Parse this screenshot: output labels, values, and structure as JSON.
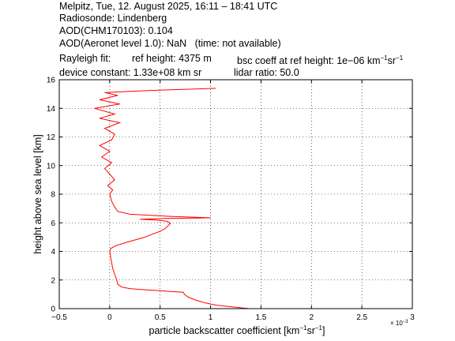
{
  "header": {
    "title": "Melpitz, Tue, 12. August 2025, 16:11 – 18:41 UTC",
    "radiosonde": "Radiosonde: Lindenberg",
    "aod_chm": "AOD(CHM170103): 0.104",
    "aod_aeronet": "AOD(Aeronet level 1.0): NaN   (time: not available)",
    "rayleigh_fit": "Rayleigh fit:",
    "ref_height": "ref height: 4375 m",
    "bsc_coeff_prefix": "bsc coeff at ref height: 1e−06 km",
    "bsc_coeff_exp1": "−1",
    "bsc_coeff_mid": "sr",
    "bsc_coeff_exp2": "−1",
    "device_constant": "device constant: 1.33e+08 km sr",
    "lidar_ratio": "lidar ratio: 50.0"
  },
  "chart_data": {
    "type": "line",
    "xlabel_prefix": "particle backscatter coefficient [km",
    "xlabel_exp1": "−1",
    "xlabel_mid": "sr",
    "xlabel_exp2": "−1",
    "xlabel_suffix": "]",
    "ylabel": "height above sea level [km]",
    "x_multiplier_label": "× 10",
    "x_multiplier_exp": "−3",
    "xlim": [
      -0.5,
      3
    ],
    "ylim": [
      0,
      16
    ],
    "xticks": [
      -0.5,
      0,
      0.5,
      1,
      1.5,
      2,
      2.5,
      3
    ],
    "xtick_labels": [
      "−0.5",
      "0",
      "0.5",
      "1",
      "1.5",
      "2",
      "2.5",
      "3"
    ],
    "yticks": [
      0,
      2,
      4,
      6,
      8,
      10,
      12,
      14,
      16
    ],
    "ytick_labels": [
      "0",
      "2",
      "4",
      "6",
      "8",
      "10",
      "12",
      "14",
      "16"
    ],
    "grid": true,
    "series": [
      {
        "color": "#ff0000",
        "points": [
          [
            1.38,
            0.0
          ],
          [
            1.25,
            0.1
          ],
          [
            1.05,
            0.25
          ],
          [
            0.95,
            0.4
          ],
          [
            0.85,
            0.6
          ],
          [
            0.78,
            0.8
          ],
          [
            0.74,
            1.0
          ],
          [
            0.73,
            1.15
          ],
          [
            0.6,
            1.2
          ],
          [
            0.5,
            1.25
          ],
          [
            0.38,
            1.3
          ],
          [
            0.28,
            1.35
          ],
          [
            0.2,
            1.4
          ],
          [
            0.12,
            1.5
          ],
          [
            0.08,
            1.7
          ],
          [
            0.07,
            2.0
          ],
          [
            0.05,
            2.4
          ],
          [
            0.03,
            2.8
          ],
          [
            0.02,
            3.2
          ],
          [
            0.01,
            3.6
          ],
          [
            0.0,
            4.0
          ],
          [
            0.01,
            4.2
          ],
          [
            0.06,
            4.4
          ],
          [
            0.15,
            4.6
          ],
          [
            0.25,
            4.8
          ],
          [
            0.35,
            5.0
          ],
          [
            0.42,
            5.2
          ],
          [
            0.5,
            5.4
          ],
          [
            0.55,
            5.6
          ],
          [
            0.58,
            5.8
          ],
          [
            0.6,
            5.95
          ],
          [
            0.57,
            6.1
          ],
          [
            0.45,
            6.2
          ],
          [
            0.3,
            6.25
          ],
          [
            0.55,
            6.3
          ],
          [
            1.0,
            6.35
          ],
          [
            0.6,
            6.45
          ],
          [
            0.2,
            6.6
          ],
          [
            0.08,
            6.8
          ],
          [
            0.05,
            7.1
          ],
          [
            0.02,
            7.5
          ],
          [
            0.0,
            8.0
          ],
          [
            0.03,
            8.3
          ],
          [
            -0.02,
            8.6
          ],
          [
            0.05,
            9.0
          ],
          [
            0.0,
            9.4
          ],
          [
            -0.05,
            9.8
          ],
          [
            0.02,
            10.2
          ],
          [
            -0.08,
            10.6
          ],
          [
            0.0,
            11.0
          ],
          [
            -0.1,
            11.4
          ],
          [
            0.02,
            11.8
          ],
          [
            0.05,
            12.2
          ],
          [
            -0.05,
            12.6
          ],
          [
            0.1,
            13.0
          ],
          [
            -0.1,
            13.3
          ],
          [
            0.05,
            13.6
          ],
          [
            -0.15,
            14.0
          ],
          [
            0.1,
            14.3
          ],
          [
            -0.1,
            14.6
          ],
          [
            0.08,
            14.9
          ],
          [
            -0.05,
            15.1
          ],
          [
            0.4,
            15.25
          ],
          [
            1.05,
            15.4
          ]
        ]
      }
    ]
  }
}
